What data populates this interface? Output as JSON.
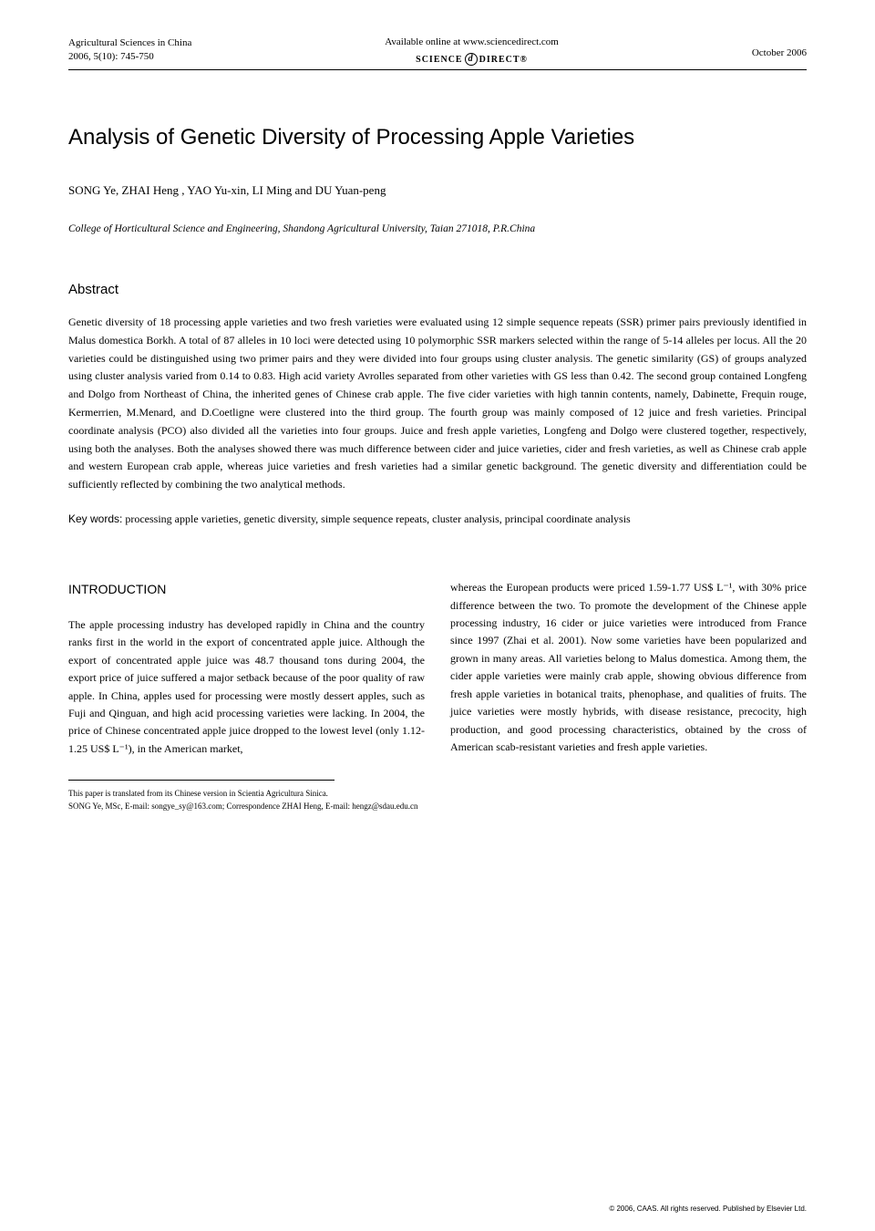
{
  "header": {
    "journal_name": "Agricultural Sciences in China",
    "issue": "2006, 5(10): 745-750",
    "available_online": "Available online at www.sciencedirect.com",
    "sciencedirect": "SCIENCE",
    "direct": "DIRECT®",
    "date": "October 2006"
  },
  "title": "Analysis of Genetic Diversity of Processing Apple Varieties",
  "authors": "SONG Ye, ZHAI Heng , YAO Yu-xin, LI Ming and DU Yuan-peng",
  "affiliation": "College of Horticultural Science and Engineering, Shandong Agricultural University, Taian 271018, P.R.China",
  "abstract": {
    "heading": "Abstract",
    "text": "Genetic diversity of 18 processing apple varieties and two fresh varieties were evaluated using 12 simple sequence repeats (SSR) primer pairs previously identified in Malus domestica Borkh. A total of 87 alleles in 10 loci were detected using 10 polymorphic SSR markers selected within the range of 5-14 alleles per locus. All the 20 varieties could be distinguished using two primer pairs and they were divided into four groups using cluster analysis. The genetic similarity (GS) of groups analyzed using cluster analysis varied from 0.14 to 0.83. High acid variety Avrolles separated from other varieties with GS less than 0.42. The second group contained Longfeng and Dolgo from Northeast of China, the inherited genes of Chinese crab apple. The five cider varieties with high tannin contents, namely, Dabinette, Frequin rouge, Kermerrien, M.Menard, and D.Coetligne were clustered into the third group. The fourth group was mainly composed of 12 juice and fresh varieties. Principal coordinate analysis (PCO) also divided all the varieties into four groups. Juice and fresh apple varieties, Longfeng and Dolgo were clustered together, respectively, using both the analyses. Both the analyses showed there was much difference between cider and juice varieties, cider and fresh varieties, as well as Chinese crab apple and western European crab apple, whereas juice varieties and fresh varieties had a similar genetic background. The genetic diversity and differentiation could be sufficiently reflected by combining the two analytical methods."
  },
  "keywords": {
    "label": "Key words:",
    "text": " processing apple varieties, genetic diversity, simple sequence repeats, cluster analysis, principal coordinate analysis"
  },
  "introduction": {
    "heading": "INTRODUCTION",
    "col1": "The apple processing industry has developed rapidly in China and the country ranks first in the world in the export of concentrated apple juice. Although the export of concentrated apple juice was 48.7 thousand tons during 2004, the export price of juice suffered a major setback because of the poor quality of raw apple. In China, apples used for processing were mostly dessert apples, such as Fuji and Qinguan, and high acid processing varieties were lacking. In 2004, the price of Chinese concentrated apple juice dropped to the lowest level (only 1.12-1.25 US$ L⁻¹), in the American market,",
    "col2": "whereas the European products were priced 1.59-1.77 US$ L⁻¹, with 30% price difference between the two. To promote the development of the Chinese apple processing industry, 16 cider or juice varieties were introduced from France since 1997 (Zhai et al. 2001). Now some varieties have been popularized and grown in many areas. All varieties belong to Malus domestica. Among them, the cider apple varieties were mainly crab apple, showing obvious difference from fresh apple varieties in botanical traits, phenophase, and qualities of fruits. The juice varieties were mostly hybrids, with disease resistance, precocity, high production, and good processing characteristics, obtained by the cross of American scab-resistant varieties and fresh apple varieties."
  },
  "footer": {
    "line1": "This paper is translated from its Chinese version in Scientia Agricultura Sinica.",
    "line2": "SONG Ye, MSc, E-mail: songye_sy@163.com; Correspondence ZHAI Heng, E-mail: hengz@sdau.edu.cn"
  },
  "copyright": "© 2006, CAAS. All rights reserved. Published by Elsevier Ltd."
}
